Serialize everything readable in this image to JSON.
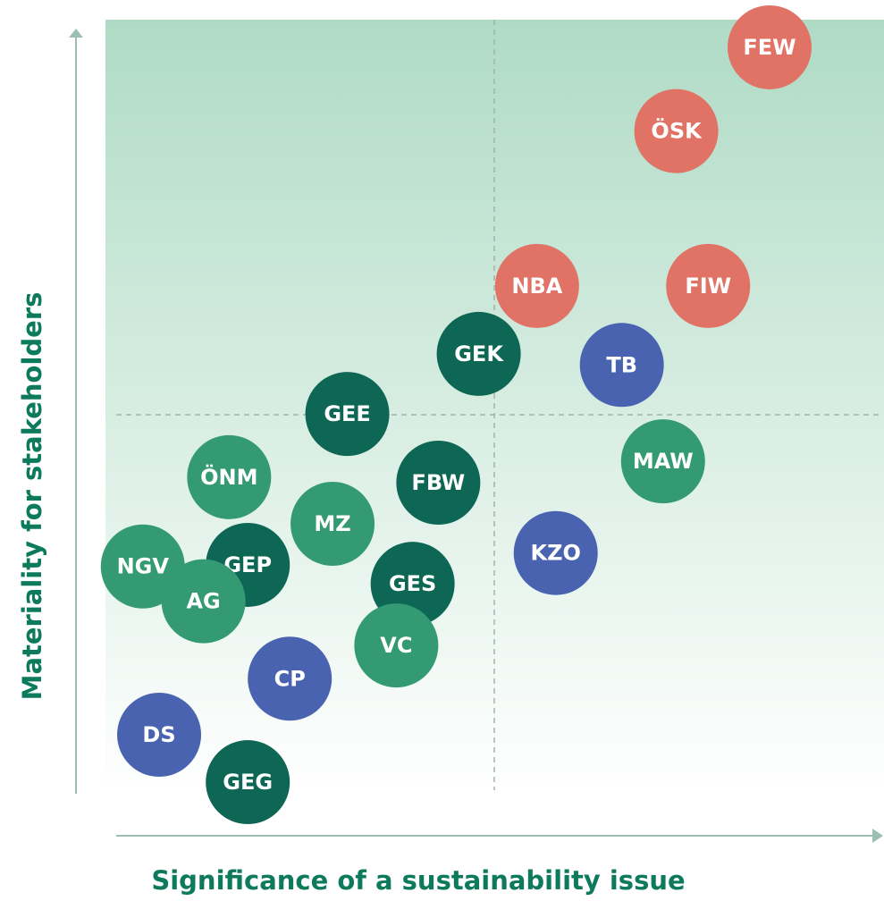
{
  "chart_data": {
    "type": "scatter",
    "x_label": "Significance of a sustainability issue",
    "y_label": "Materiality for stakeholders",
    "xlim": [
      0,
      100
    ],
    "ylim": [
      0,
      100
    ],
    "reference_lines": {
      "x": [
        50
      ],
      "y": [
        50
      ]
    },
    "points": [
      {
        "label": "FEW",
        "x": 85.4,
        "y": 96.5,
        "color": "#e07366"
      },
      {
        "label": "ÖSK",
        "x": 73.4,
        "y": 85.9,
        "color": "#e07366"
      },
      {
        "label": "NBA",
        "x": 55.5,
        "y": 66.3,
        "color": "#e07366"
      },
      {
        "label": "FIW",
        "x": 77.5,
        "y": 66.3,
        "color": "#e07366"
      },
      {
        "label": "GEK",
        "x": 48.0,
        "y": 57.7,
        "color": "#0e6654"
      },
      {
        "label": "TB",
        "x": 66.4,
        "y": 56.3,
        "color": "#4a63b0"
      },
      {
        "label": "GEE",
        "x": 31.1,
        "y": 50.1,
        "color": "#0e6654"
      },
      {
        "label": "MAW",
        "x": 71.7,
        "y": 44.1,
        "color": "#349a74"
      },
      {
        "label": "ÖNM",
        "x": 15.9,
        "y": 42.1,
        "color": "#349a74"
      },
      {
        "label": "FBW",
        "x": 42.8,
        "y": 41.4,
        "color": "#0e6654"
      },
      {
        "label": "MZ",
        "x": 29.2,
        "y": 36.2,
        "color": "#349a74"
      },
      {
        "label": "KZO",
        "x": 57.9,
        "y": 32.5,
        "color": "#4a63b0"
      },
      {
        "label": "GEP",
        "x": 18.3,
        "y": 31.0,
        "color": "#0e6654"
      },
      {
        "label": "NGV",
        "x": 4.8,
        "y": 30.8,
        "color": "#349a74"
      },
      {
        "label": "AG",
        "x": 12.6,
        "y": 26.4,
        "color": "#349a74"
      },
      {
        "label": "GES",
        "x": 39.5,
        "y": 28.6,
        "color": "#0e6654"
      },
      {
        "label": "VC",
        "x": 37.4,
        "y": 20.8,
        "color": "#349a74"
      },
      {
        "label": "CP",
        "x": 23.7,
        "y": 16.6,
        "color": "#4a63b0"
      },
      {
        "label": "DS",
        "x": 6.9,
        "y": 9.5,
        "color": "#4a63b0"
      },
      {
        "label": "GEG",
        "x": 18.3,
        "y": 3.5,
        "color": "#0e6654"
      }
    ]
  }
}
